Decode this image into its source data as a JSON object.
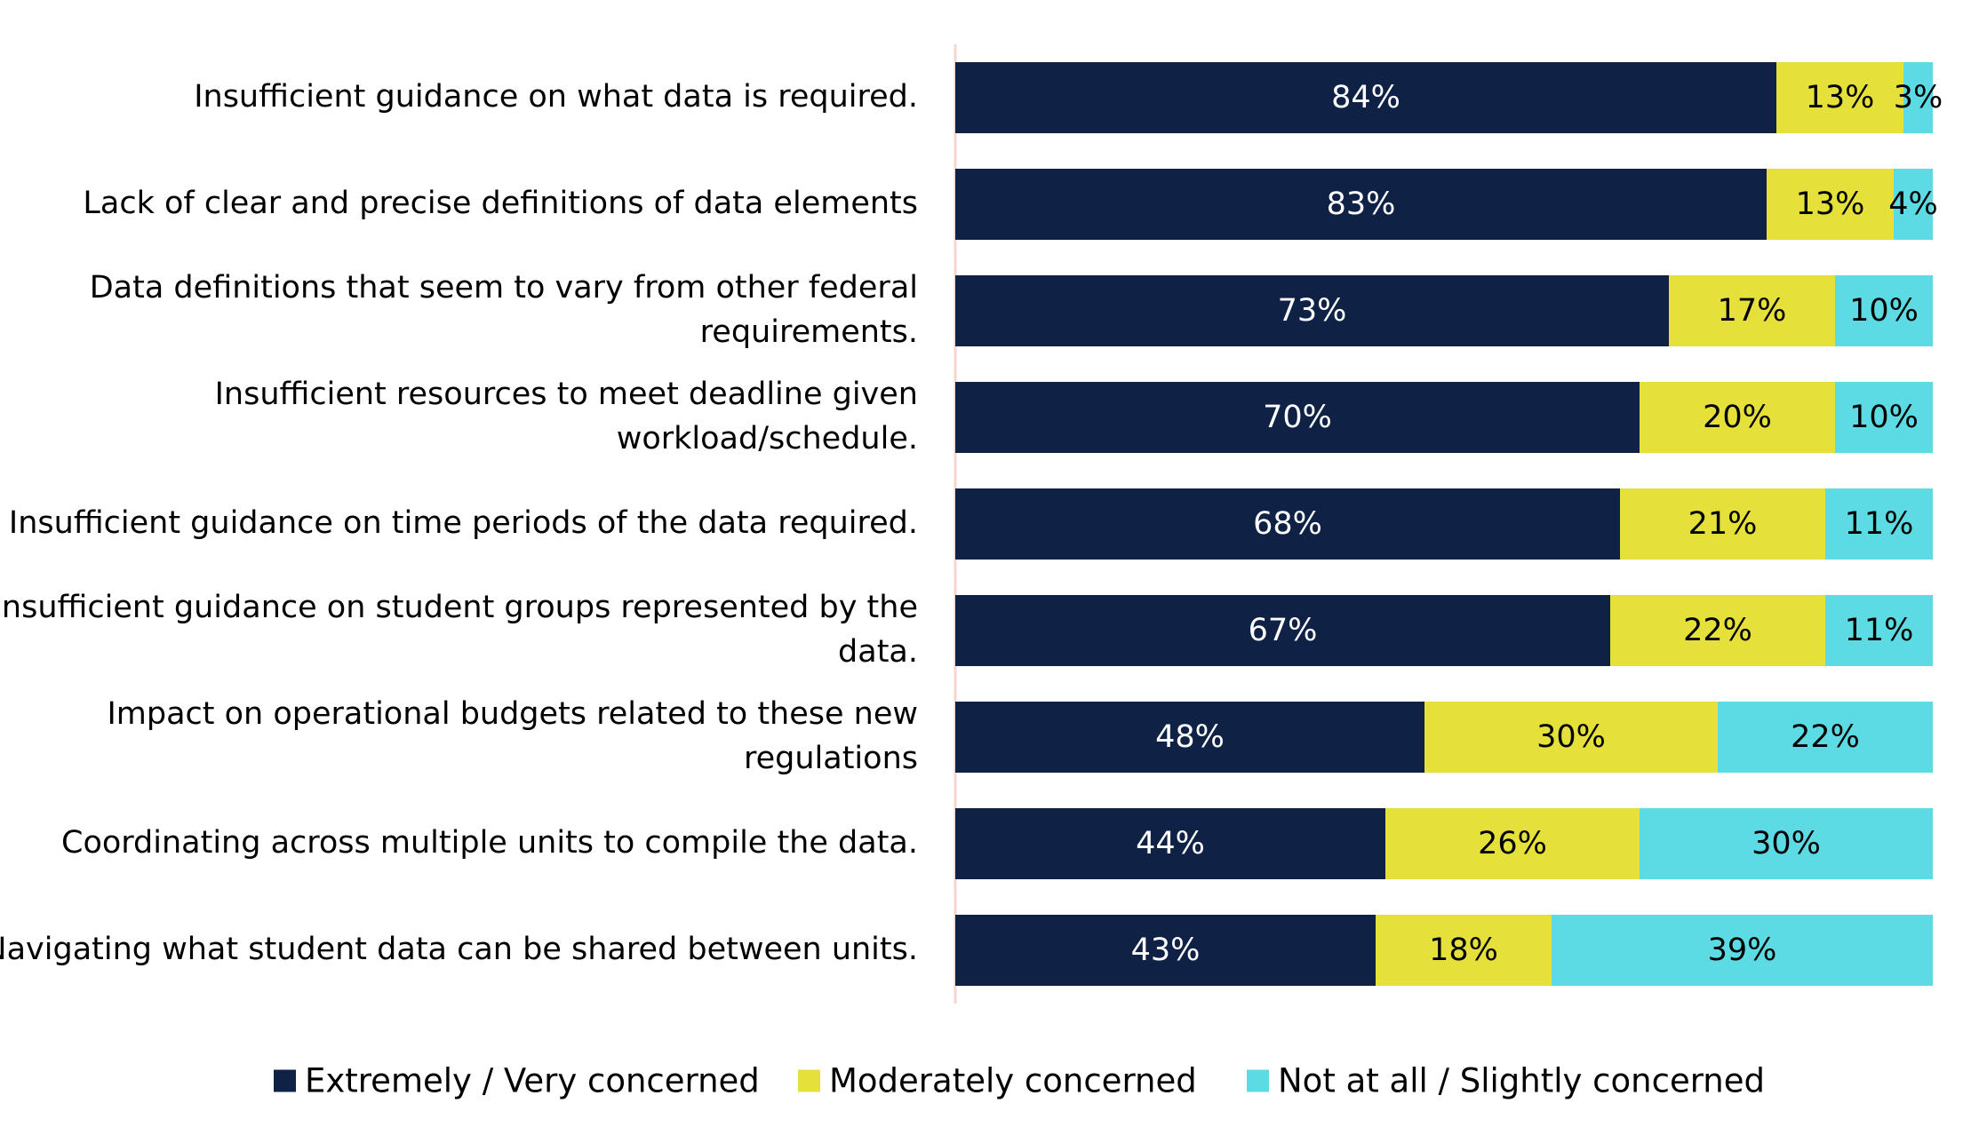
{
  "chart_data": {
    "type": "bar",
    "orientation": "horizontal",
    "stacked": true,
    "title": "",
    "xlabel": "",
    "ylabel": "",
    "xlim": [
      0,
      100
    ],
    "unit": "%",
    "grid": false,
    "legend_position": "bottom",
    "categories": [
      [
        "Insufficient guidance on what data is required."
      ],
      [
        "Lack of clear and precise definitions of data elements"
      ],
      [
        "Data definitions that seem to vary from other federal",
        "requirements."
      ],
      [
        "Insufficient resources to meet deadline given",
        "workload/schedule."
      ],
      [
        "Insufficient guidance on time periods of the data required."
      ],
      [
        "Insufficient guidance on student groups represented by the",
        "data."
      ],
      [
        "Impact on operational budgets related to these new",
        "regulations"
      ],
      [
        "Coordinating across multiple units to compile the data."
      ],
      [
        "Navigating what student data can be shared between units."
      ]
    ],
    "series": [
      {
        "name": "Extremely / Very concerned",
        "color": "#0f2245",
        "label_color": "#ffffff",
        "values": [
          84,
          83,
          73,
          70,
          68,
          67,
          48,
          44,
          43
        ]
      },
      {
        "name": "Moderately concerned",
        "color": "#e6e13a",
        "label_color": "#000000",
        "values": [
          13,
          13,
          17,
          20,
          21,
          22,
          30,
          26,
          18
        ]
      },
      {
        "name": "Not at all / Slightly concerned",
        "color": "#5cdbe4",
        "label_color": "#000000",
        "values": [
          3,
          4,
          10,
          10,
          11,
          11,
          22,
          30,
          39
        ]
      }
    ]
  }
}
